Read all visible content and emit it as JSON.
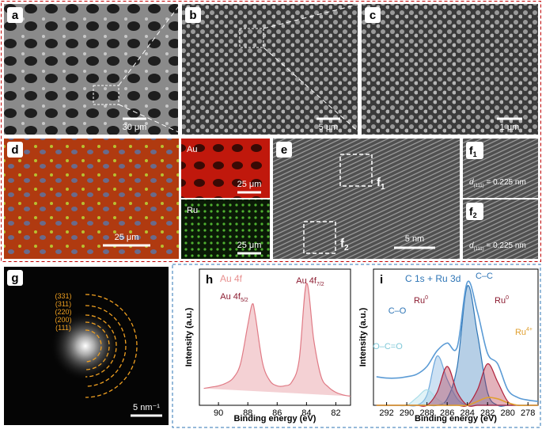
{
  "panels": {
    "a": {
      "label": "a",
      "scale": "30 μm"
    },
    "b": {
      "label": "b",
      "scale": "5 μm"
    },
    "c": {
      "label": "c",
      "scale": "1 μm"
    },
    "d": {
      "label": "d",
      "scale": "25 μm",
      "au": "Au",
      "au_scale": "25 μm",
      "ru": "Ru",
      "ru_scale": "25 μm"
    },
    "e": {
      "label": "e",
      "f1": {
        "main": "f",
        "sub": "1"
      },
      "f2": {
        "main": "f",
        "sub": "2"
      },
      "scale": "5 nm"
    },
    "f1": {
      "label": {
        "main": "f",
        "sub": "1"
      },
      "d": {
        "main": "d",
        "sub": "(111)",
        "rest": " = 0.225 nm"
      }
    },
    "f2": {
      "label": {
        "main": "f",
        "sub": "2"
      },
      "d": {
        "main": "d",
        "sub": "(111)",
        "rest": " = 0.225 nm"
      }
    },
    "g": {
      "label": "g",
      "rings": [
        "(331)",
        "(311)",
        "(220)",
        "(200)",
        "(111)"
      ],
      "scale": "5 nm⁻¹"
    }
  },
  "chart_data": [
    {
      "type": "line",
      "panel": "h",
      "title": "Au 4f",
      "title_color": "#e8908f",
      "annotations": [
        {
          "text": "Au 4f",
          "sub": "5/2",
          "color": "#8b1a2f"
        },
        {
          "text": "Au 4f",
          "sub": "7/2",
          "color": "#8b1a2f"
        }
      ],
      "x_label": "Binding energy (eV)",
      "y_label": "Intensity (a.u.)",
      "xlim": [
        91.3,
        81
      ],
      "xticks": [
        90,
        88,
        86,
        84,
        82
      ],
      "ylim": [
        0,
        105
      ],
      "x": [
        91,
        90.5,
        90,
        89.5,
        89,
        88.5,
        88,
        87.7,
        87.5,
        87,
        86.5,
        86,
        85.5,
        85,
        84.5,
        84,
        83.5,
        83,
        82.5,
        82,
        81.5,
        81
      ],
      "series": [
        {
          "color": "#e07a85",
          "fill": true,
          "values": [
            13,
            14,
            15,
            17,
            21,
            32,
            62,
            78,
            70,
            33,
            19,
            15,
            15,
            18,
            35,
            94,
            50,
            22,
            14,
            10,
            8,
            7
          ]
        }
      ]
    },
    {
      "type": "line",
      "panel": "i",
      "title": "C 1s + Ru 3d",
      "title_color": "#2e75b6",
      "annotations": [
        {
          "text": "C–C",
          "color": "#2e75b6"
        },
        {
          "text": "C–O",
          "color": "#2e75b6"
        },
        {
          "text": "Ru",
          "sup": "0",
          "color": "#8b1a2f"
        },
        {
          "text": "Ru",
          "sup": "0",
          "color": "#8b1a2f"
        },
        {
          "text": "Ru",
          "sup": "4+",
          "color": "#e0a030"
        },
        {
          "text": "O–C=O",
          "color": "#7fc8d8"
        }
      ],
      "x_label": "Binding energy (eV)",
      "y_label": "Intensity (a.u.)",
      "xlim": [
        293.3,
        277
      ],
      "xticks": [
        292,
        290,
        288,
        286,
        284,
        282,
        280,
        278
      ],
      "ylim": [
        0,
        105
      ],
      "x": [
        293,
        292,
        291,
        290,
        289,
        288,
        287,
        286,
        285,
        284,
        283,
        282,
        281,
        280,
        279,
        278,
        277
      ],
      "series": [
        {
          "color": "#2e75b6",
          "fill": true,
          "values": [
            0,
            0,
            0,
            0,
            0,
            0,
            0,
            5,
            30,
            92,
            55,
            10,
            0,
            0,
            0,
            0,
            0
          ]
        },
        {
          "color": "#6fa8dc",
          "fill": true,
          "values": [
            0,
            0,
            0,
            0,
            0,
            8,
            38,
            20,
            5,
            0,
            0,
            0,
            0,
            0,
            0,
            0,
            0
          ]
        },
        {
          "color": "#a8dce8",
          "fill": true,
          "values": [
            0,
            0,
            0,
            0,
            6,
            12,
            5,
            0,
            0,
            0,
            0,
            0,
            0,
            0,
            0,
            0,
            0
          ]
        },
        {
          "color": "#b0213b",
          "fill": true,
          "values": [
            0,
            0,
            0,
            0,
            0,
            0,
            10,
            30,
            10,
            0,
            0,
            0,
            0,
            0,
            0,
            0,
            0
          ]
        },
        {
          "color": "#b0213b",
          "fill": true,
          "values": [
            0,
            0,
            0,
            0,
            0,
            0,
            0,
            0,
            0,
            0,
            12,
            32,
            18,
            3,
            0,
            0,
            0
          ]
        },
        {
          "color": "#e0a030",
          "fill": false,
          "values": [
            0,
            0,
            0,
            0,
            0,
            0,
            0,
            0,
            0,
            0,
            3,
            6,
            5,
            2,
            0,
            0,
            0
          ]
        },
        {
          "color": "#5b9bd5",
          "fill": false,
          "values": [
            22,
            21,
            21,
            22,
            24,
            30,
            42,
            48,
            45,
            95,
            72,
            40,
            32,
            12,
            6,
            4,
            3
          ]
        }
      ]
    }
  ]
}
